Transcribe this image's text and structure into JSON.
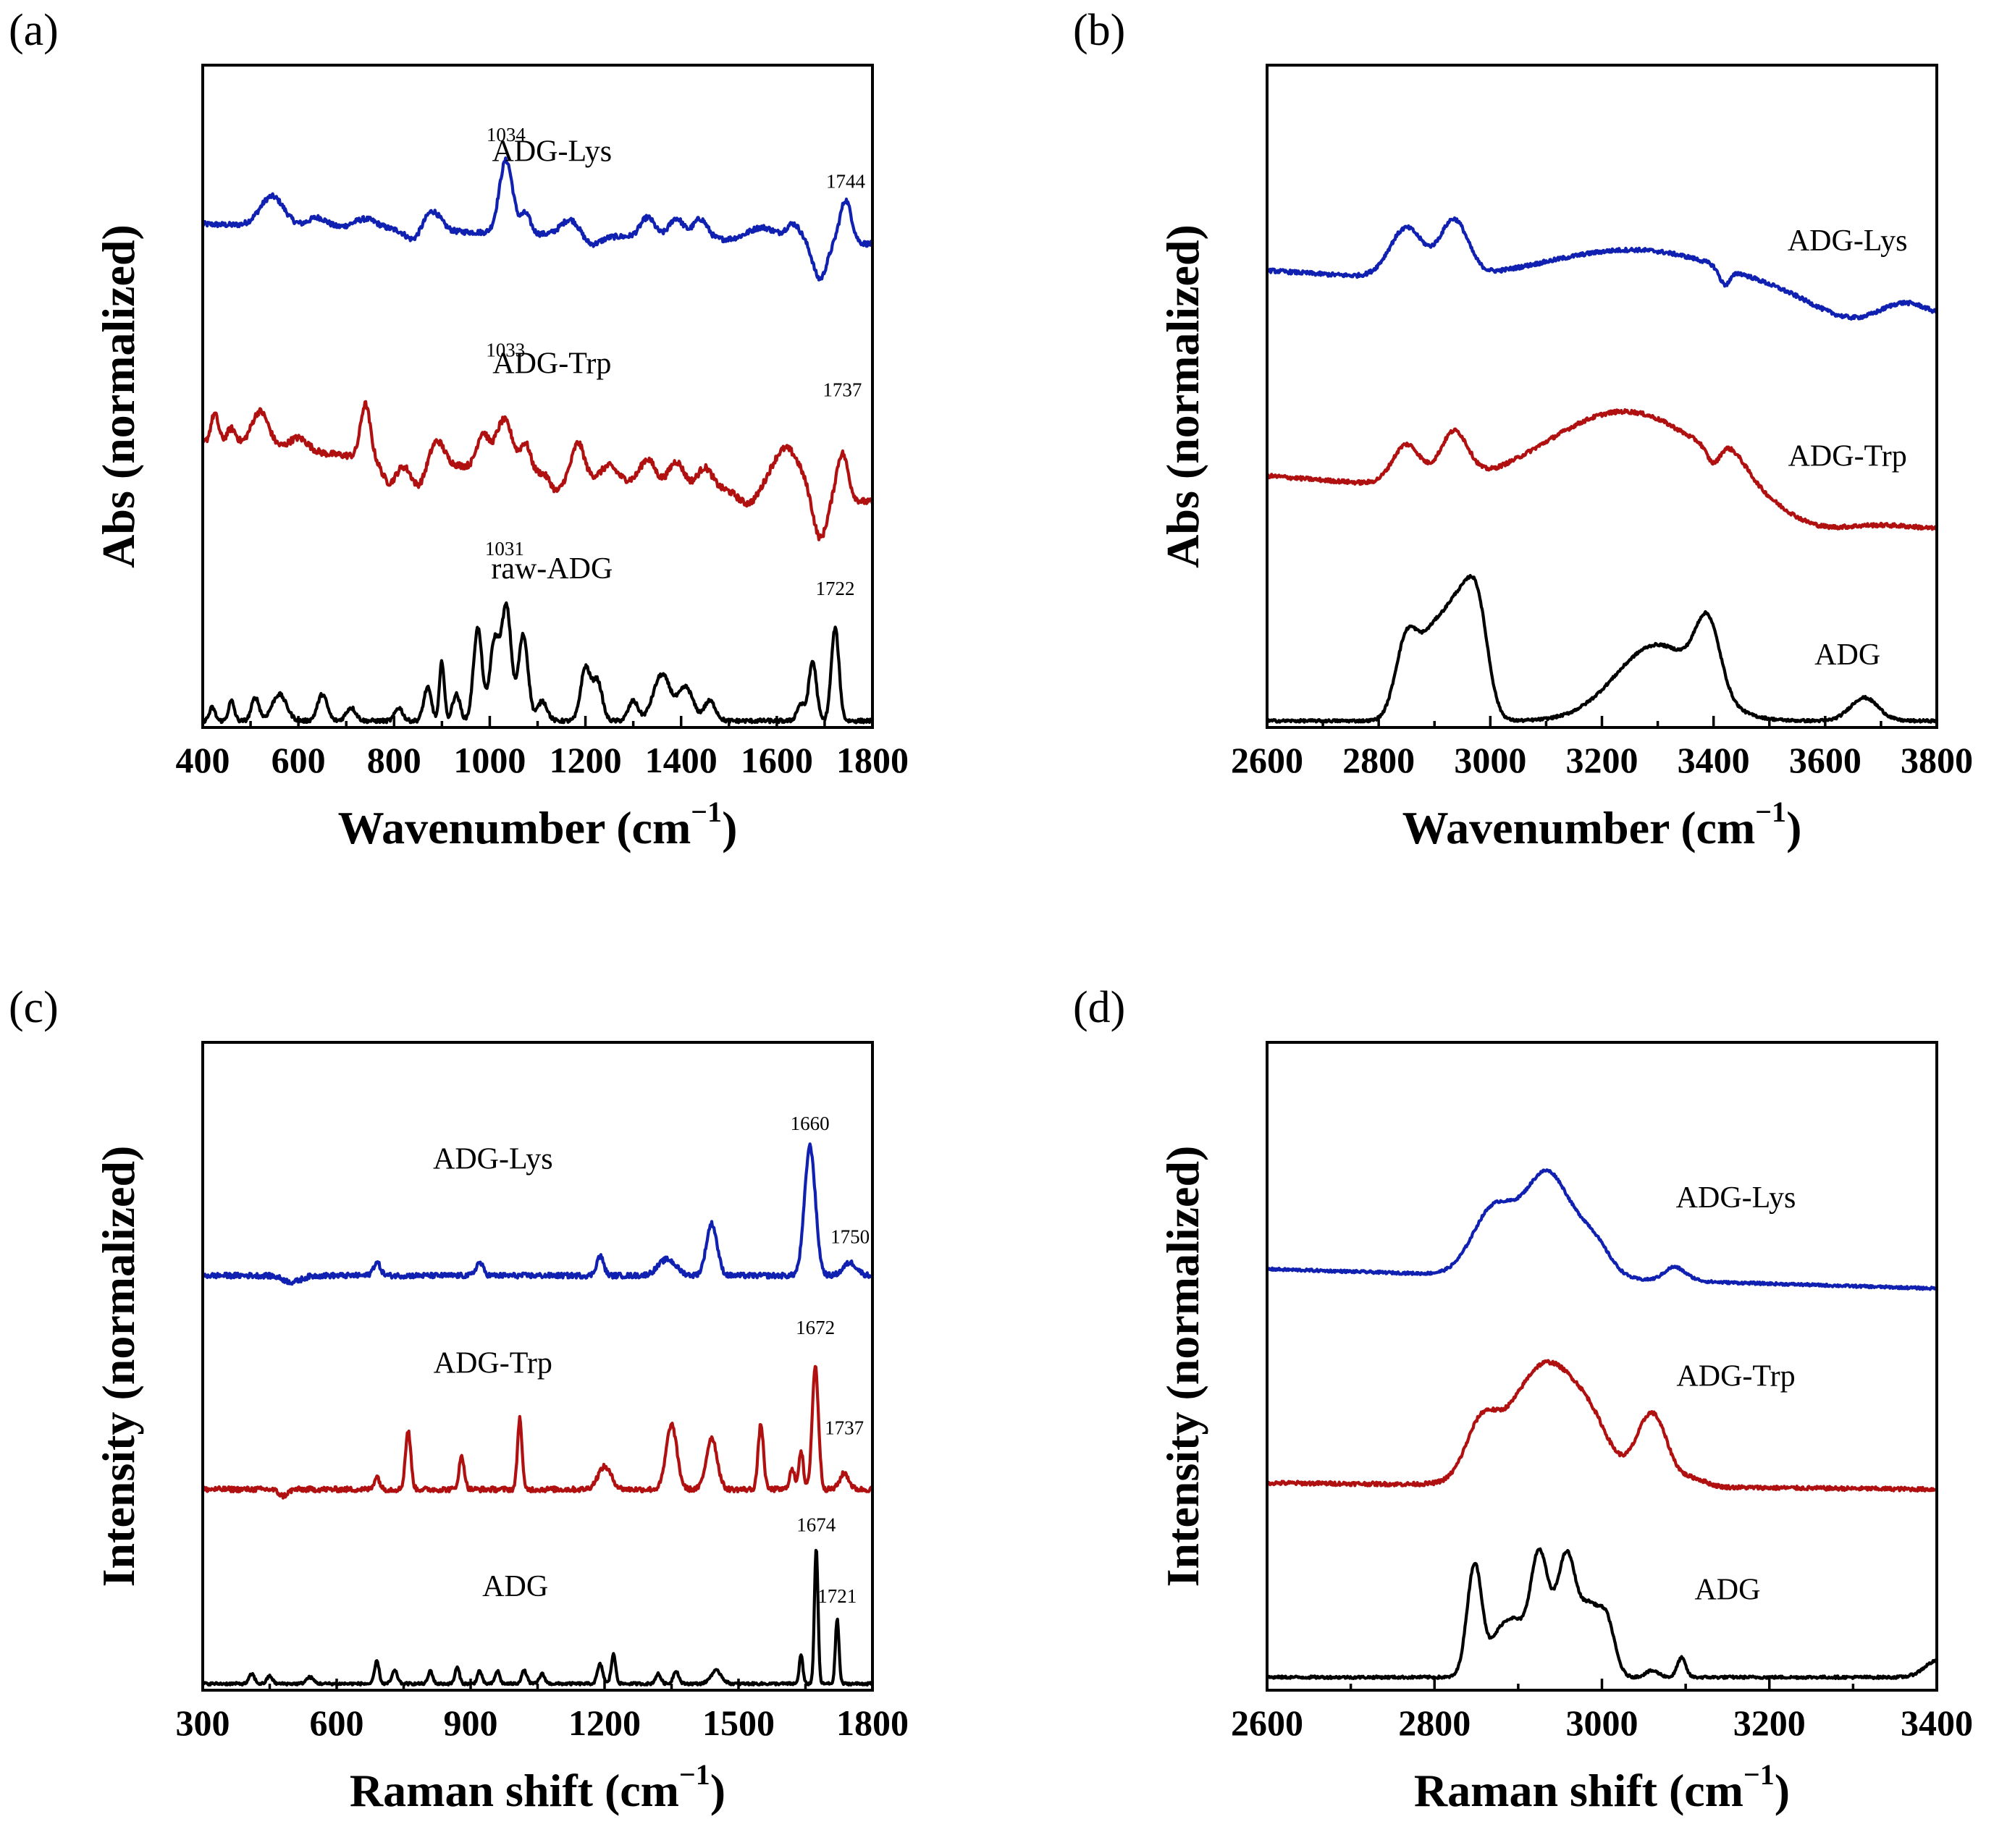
{
  "colors": {
    "ADG-Lys": "#1020b0",
    "ADG-Trp": "#b01010",
    "raw-ADG": "#000000",
    "ADG": "#000000"
  },
  "chart_data": [
    {
      "panel": "(a)",
      "type": "line",
      "xlabel": "Wavenumber (cm",
      "xlabel_sup": "−1",
      "xlabel_close": ")",
      "ylabel": "Abs (normalized)",
      "xlim": [
        400,
        1800
      ],
      "ylim": [
        0,
        1
      ],
      "xticks": [
        400,
        600,
        800,
        1000,
        1200,
        1400,
        1600,
        1800
      ],
      "series": [
        {
          "name": "ADG-Lys",
          "label": "ADG-Lys",
          "label_pos": [
            1130,
            0.855
          ],
          "baseline": 0.76,
          "end": 0.73,
          "noise": 0.004,
          "peaks": [
            [
              545,
              0.045,
              25
            ],
            [
              640,
              0.015,
              20
            ],
            [
              740,
              0.015,
              25
            ],
            [
              880,
              0.03,
              18
            ],
            [
              1034,
              0.11,
              14
            ],
            [
              1075,
              0.03,
              10
            ],
            [
              1170,
              0.025,
              20
            ],
            [
              1330,
              0.03,
              15
            ],
            [
              1390,
              0.03,
              15
            ],
            [
              1440,
              0.03,
              15
            ],
            [
              1570,
              0.02,
              30
            ],
            [
              1635,
              0.025,
              15
            ],
            [
              1744,
              0.065,
              12
            ]
          ],
          "dips": [
            [
              840,
              0.015,
              15
            ],
            [
              1210,
              0.015,
              20
            ],
            [
              1690,
              0.055,
              14
            ]
          ],
          "annotations": [
            {
              "text": "1034",
              "x": 1034,
              "y": 0.885
            },
            {
              "text": "1744",
              "x": 1744,
              "y": 0.815
            }
          ]
        },
        {
          "name": "ADG-Trp",
          "label": "ADG-Trp",
          "label_pos": [
            1130,
            0.535
          ],
          "baseline": 0.43,
          "end": 0.34,
          "noise": 0.005,
          "peaks": [
            [
              425,
              0.045,
              8
            ],
            [
              460,
              0.025,
              10
            ],
            [
              520,
              0.055,
              18
            ],
            [
              600,
              0.02,
              20
            ],
            [
              740,
              0.08,
              10
            ],
            [
              890,
              0.035,
              15
            ],
            [
              985,
              0.05,
              12
            ],
            [
              1030,
              0.075,
              18
            ],
            [
              1075,
              0.04,
              10
            ],
            [
              1185,
              0.05,
              12
            ],
            [
              1250,
              0.02,
              15
            ],
            [
              1330,
              0.035,
              15
            ],
            [
              1390,
              0.035,
              15
            ],
            [
              1450,
              0.03,
              15
            ],
            [
              1620,
              0.07,
              30
            ],
            [
              1737,
              0.07,
              12
            ]
          ],
          "dips": [
            [
              790,
              0.035,
              15
            ],
            [
              850,
              0.035,
              15
            ],
            [
              1140,
              0.025,
              12
            ],
            [
              1540,
              0.02,
              20
            ],
            [
              1690,
              0.065,
              14
            ]
          ],
          "annotations": [
            {
              "text": "1033",
              "x": 1033,
              "y": 0.56
            },
            {
              "text": "1737",
              "x": 1737,
              "y": 0.5
            }
          ]
        },
        {
          "name": "raw-ADG",
          "label": "raw-ADG",
          "label_pos": [
            1130,
            0.225
          ],
          "baseline": 0.01,
          "end": 0.01,
          "noise": 0.003,
          "peaks": [
            [
              420,
              0.02,
              6
            ],
            [
              460,
              0.03,
              6
            ],
            [
              510,
              0.035,
              8
            ],
            [
              560,
              0.04,
              15
            ],
            [
              650,
              0.04,
              10
            ],
            [
              710,
              0.02,
              10
            ],
            [
              810,
              0.02,
              8
            ],
            [
              870,
              0.05,
              8
            ],
            [
              900,
              0.09,
              5
            ],
            [
              930,
              0.04,
              8
            ],
            [
              975,
              0.14,
              9
            ],
            [
              1010,
              0.12,
              10
            ],
            [
              1035,
              0.17,
              10
            ],
            [
              1070,
              0.13,
              10
            ],
            [
              1110,
              0.03,
              10
            ],
            [
              1200,
              0.08,
              10
            ],
            [
              1225,
              0.06,
              10
            ],
            [
              1300,
              0.03,
              10
            ],
            [
              1360,
              0.07,
              18
            ],
            [
              1410,
              0.05,
              15
            ],
            [
              1460,
              0.03,
              12
            ],
            [
              1650,
              0.025,
              8
            ],
            [
              1675,
              0.09,
              8
            ],
            [
              1722,
              0.14,
              8
            ]
          ],
          "dips": [],
          "annotations": [
            {
              "text": "1031",
              "x": 1031,
              "y": 0.26
            },
            {
              "text": "1722",
              "x": 1722,
              "y": 0.2
            }
          ]
        }
      ]
    },
    {
      "panel": "(b)",
      "type": "line",
      "xlabel": "Wavenumber (cm",
      "xlabel_sup": "−1",
      "xlabel_close": ")",
      "ylabel": "Abs (normalized)",
      "xlim": [
        2600,
        3800
      ],
      "ylim": [
        0,
        1
      ],
      "xticks": [
        2600,
        2800,
        3000,
        3200,
        3400,
        3600,
        3800
      ],
      "series": [
        {
          "name": "ADG-Lys",
          "label": "ADG-Lys",
          "label_pos": [
            3640,
            0.72
          ],
          "baseline": 0.69,
          "end": 0.62,
          "noise": 0.003,
          "peaks": [
            [
              2850,
              0.075,
              30
            ],
            [
              2935,
              0.085,
              25
            ],
            [
              3280,
              0.07,
              180
            ],
            [
              3640,
              -0.02,
              60
            ],
            [
              3740,
              0.02,
              40
            ]
          ],
          "dips": [
            [
              3420,
              0.025,
              10
            ]
          ],
          "annotations": []
        },
        {
          "name": "ADG-Trp",
          "label": "ADG-Trp",
          "label_pos": [
            3640,
            0.395
          ],
          "baseline": 0.38,
          "end": 0.3,
          "noise": 0.003,
          "peaks": [
            [
              2850,
              0.06,
              25
            ],
            [
              2935,
              0.075,
              25
            ],
            [
              3250,
              0.14,
              150
            ],
            [
              3430,
              0.03,
              30
            ],
            [
              3580,
              -0.02,
              60
            ]
          ],
          "dips": [
            [
              3400,
              0.03,
              12
            ]
          ],
          "annotations": []
        },
        {
          "name": "ADG",
          "label": "ADG",
          "label_pos": [
            3640,
            0.095
          ],
          "baseline": 0.01,
          "end": 0.01,
          "noise": 0.002,
          "peaks": [
            [
              2850,
              0.12,
              20
            ],
            [
              2900,
              0.13,
              25
            ],
            [
              2940,
              0.12,
              20
            ],
            [
              2975,
              0.18,
              20
            ],
            [
              3300,
              0.115,
              75
            ],
            [
              3390,
              0.105,
              22
            ],
            [
              3670,
              0.035,
              25
            ]
          ],
          "dips": [],
          "annotations": []
        }
      ]
    },
    {
      "panel": "(c)",
      "type": "line",
      "xlabel": "Raman shift (cm",
      "xlabel_sup": "−1",
      "xlabel_close": ")",
      "ylabel": "Intensity (normalized)",
      "xlim": [
        300,
        1800
      ],
      "ylim": [
        0,
        1
      ],
      "xticks": [
        300,
        600,
        900,
        1200,
        1500,
        1800
      ],
      "series": [
        {
          "name": "ADG-Lys",
          "label": "ADG-Lys",
          "label_pos": [
            950,
            0.805
          ],
          "baseline": 0.64,
          "end": 0.64,
          "noise": 0.004,
          "peaks": [
            [
              690,
              0.02,
              8
            ],
            [
              920,
              0.02,
              8
            ],
            [
              1190,
              0.03,
              8
            ],
            [
              1340,
              0.025,
              20
            ],
            [
              1440,
              0.08,
              12
            ],
            [
              1660,
              0.2,
              12
            ],
            [
              1750,
              0.02,
              15
            ]
          ],
          "dips": [
            [
              500,
              0.01,
              20
            ]
          ],
          "annotations": [
            {
              "text": "1660",
              "x": 1660,
              "y": 0.865
            },
            {
              "text": "1750",
              "x": 1750,
              "y": 0.69
            }
          ]
        },
        {
          "name": "ADG-Trp",
          "label": "ADG-Trp",
          "label_pos": [
            950,
            0.49
          ],
          "baseline": 0.31,
          "end": 0.31,
          "noise": 0.004,
          "peaks": [
            [
              690,
              0.02,
              6
            ],
            [
              760,
              0.09,
              6
            ],
            [
              880,
              0.05,
              6
            ],
            [
              1010,
              0.11,
              5
            ],
            [
              1200,
              0.035,
              15
            ],
            [
              1350,
              0.1,
              12
            ],
            [
              1440,
              0.08,
              12
            ],
            [
              1550,
              0.1,
              6
            ],
            [
              1620,
              0.03,
              6
            ],
            [
              1640,
              0.06,
              5
            ],
            [
              1672,
              0.19,
              7
            ],
            [
              1737,
              0.025,
              10
            ]
          ],
          "dips": [
            [
              480,
              0.01,
              10
            ]
          ],
          "annotations": [
            {
              "text": "1672",
              "x": 1672,
              "y": 0.55
            },
            {
              "text": "1737",
              "x": 1737,
              "y": 0.395
            }
          ]
        },
        {
          "name": "ADG",
          "label": "ADG",
          "label_pos": [
            1000,
            0.145
          ],
          "baseline": 0.01,
          "end": 0.01,
          "noise": 0.002,
          "peaks": [
            [
              410,
              0.015,
              6
            ],
            [
              450,
              0.012,
              6
            ],
            [
              540,
              0.01,
              8
            ],
            [
              690,
              0.035,
              5
            ],
            [
              730,
              0.02,
              6
            ],
            [
              810,
              0.02,
              5
            ],
            [
              870,
              0.025,
              5
            ],
            [
              920,
              0.02,
              5
            ],
            [
              960,
              0.02,
              5
            ],
            [
              1020,
              0.02,
              6
            ],
            [
              1060,
              0.015,
              6
            ],
            [
              1190,
              0.03,
              6
            ],
            [
              1220,
              0.045,
              5
            ],
            [
              1320,
              0.015,
              6
            ],
            [
              1360,
              0.02,
              6
            ],
            [
              1450,
              0.02,
              12
            ],
            [
              1640,
              0.045,
              4
            ],
            [
              1674,
              0.21,
              4
            ],
            [
              1721,
              0.1,
              4
            ]
          ],
          "dips": [],
          "annotations": [
            {
              "text": "1674",
              "x": 1674,
              "y": 0.245
            },
            {
              "text": "1721",
              "x": 1721,
              "y": 0.135
            }
          ]
        }
      ]
    },
    {
      "panel": "(d)",
      "type": "line",
      "xlabel": "Raman shift (cm",
      "xlabel_sup": "−1",
      "xlabel_close": ")",
      "ylabel": "Intensity (normalized)",
      "xlim": [
        2600,
        3400
      ],
      "ylim": [
        0,
        1
      ],
      "xticks": [
        2600,
        2800,
        3000,
        3200,
        3400
      ],
      "series": [
        {
          "name": "ADG-Lys",
          "label": "ADG-Lys",
          "label_pos": [
            3160,
            0.745
          ],
          "baseline": 0.65,
          "end": 0.62,
          "noise": 0.002,
          "peaks": [
            [
              2870,
              0.1,
              25
            ],
            [
              2935,
              0.16,
              28
            ],
            [
              2990,
              0.05,
              20
            ],
            [
              3085,
              0.01,
              10
            ],
            [
              3090,
              0.012,
              15
            ]
          ],
          "dips": [],
          "annotations": []
        },
        {
          "name": "ADG-Trp",
          "label": "ADG-Trp",
          "label_pos": [
            3160,
            0.47
          ],
          "baseline": 0.32,
          "end": 0.31,
          "noise": 0.003,
          "peaks": [
            [
              2855,
              0.07,
              18
            ],
            [
              2935,
              0.19,
              45
            ],
            [
              2990,
              0.03,
              20
            ],
            [
              3060,
              0.11,
              18
            ],
            [
              3110,
              0.012,
              15
            ]
          ],
          "dips": [],
          "annotations": []
        },
        {
          "name": "ADG",
          "label": "ADG",
          "label_pos": [
            3150,
            0.14
          ],
          "baseline": 0.02,
          "end": 0.02,
          "noise": 0.002,
          "peaks": [
            [
              2848,
              0.175,
              9
            ],
            [
              2875,
              0.05,
              10
            ],
            [
              2895,
              0.08,
              12
            ],
            [
              2925,
              0.19,
              11
            ],
            [
              2958,
              0.19,
              12
            ],
            [
              2985,
              0.09,
              10
            ],
            [
              3005,
              0.09,
              10
            ],
            [
              3060,
              0.01,
              8
            ],
            [
              3095,
              0.03,
              5
            ],
            [
              3400,
              0.025,
              15
            ]
          ],
          "dips": [],
          "annotations": []
        }
      ]
    }
  ]
}
